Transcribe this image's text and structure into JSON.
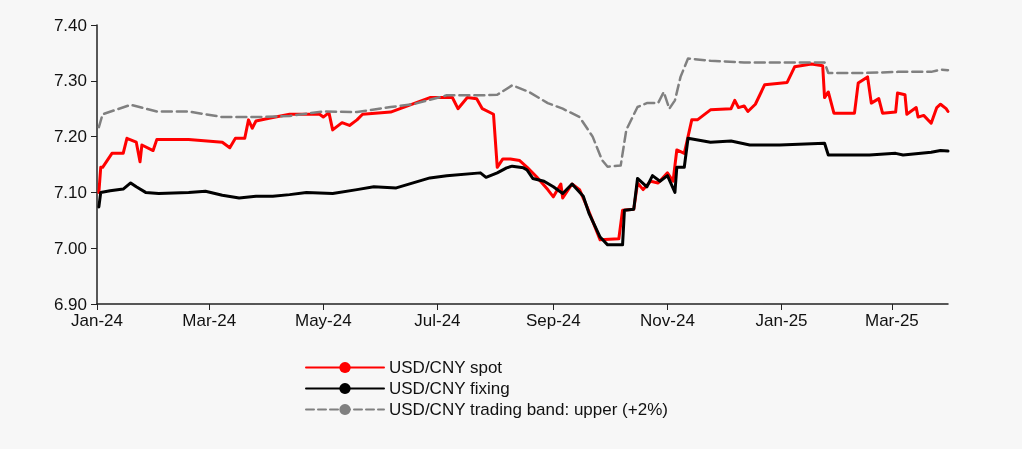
{
  "chart_data": {
    "type": "line",
    "xlim": [
      "2024-01-01",
      "2025-03-31"
    ],
    "xticks": [
      {
        "value": "2024-01-01",
        "label": "Jan-24"
      },
      {
        "value": "2024-03-01",
        "label": "Mar-24"
      },
      {
        "value": "2024-05-01",
        "label": "May-24"
      },
      {
        "value": "2024-07-01",
        "label": "Jul-24"
      },
      {
        "value": "2024-09-01",
        "label": "Sep-24"
      },
      {
        "value": "2024-11-01",
        "label": "Nov-24"
      },
      {
        "value": "2025-01-01",
        "label": "Jan-25"
      },
      {
        "value": "2025-03-01",
        "label": "Mar-25"
      }
    ],
    "ylim": [
      6.9,
      7.4
    ],
    "yticks": [
      {
        "value": 6.9,
        "label": "6.90"
      },
      {
        "value": 7.0,
        "label": "7.00"
      },
      {
        "value": 7.1,
        "label": "7.10"
      },
      {
        "value": 7.2,
        "label": "7.20"
      },
      {
        "value": 7.3,
        "label": "7.30"
      },
      {
        "value": 7.4,
        "label": "7.40"
      }
    ],
    "grid": false,
    "legend": "bottom",
    "marker": "none",
    "series": [
      {
        "name": "USD/CNY spot",
        "color": "#ff0000",
        "line_style": "solid",
        "x": [
          "2024-01-02",
          "2024-01-03",
          "2024-01-04",
          "2024-01-09",
          "2024-01-15",
          "2024-01-17",
          "2024-01-22",
          "2024-01-24",
          "2024-01-25",
          "2024-01-31",
          "2024-02-02",
          "2024-02-19",
          "2024-03-08",
          "2024-03-12",
          "2024-03-15",
          "2024-03-20",
          "2024-03-22",
          "2024-03-24",
          "2024-03-26",
          "2024-04-02",
          "2024-04-13",
          "2024-04-29",
          "2024-05-01",
          "2024-05-04",
          "2024-05-06",
          "2024-05-11",
          "2024-05-15",
          "2024-05-19",
          "2024-05-22",
          "2024-06-06",
          "2024-06-27",
          "2024-07-09",
          "2024-07-12",
          "2024-07-17",
          "2024-07-22",
          "2024-07-25",
          "2024-07-31",
          "2024-08-02",
          "2024-08-05",
          "2024-08-09",
          "2024-08-14",
          "2024-08-18",
          "2024-08-23",
          "2024-08-29",
          "2024-09-01",
          "2024-09-05",
          "2024-09-06",
          "2024-09-11",
          "2024-09-15",
          "2024-09-19",
          "2024-09-26",
          "2024-10-06",
          "2024-10-08",
          "2024-10-14",
          "2024-10-16",
          "2024-10-19",
          "2024-10-23",
          "2024-10-27",
          "2024-11-01",
          "2024-11-04",
          "2024-11-06",
          "2024-11-10",
          "2024-11-14",
          "2024-11-17",
          "2024-11-24",
          "2024-12-05",
          "2024-12-07",
          "2024-12-09",
          "2024-12-12",
          "2024-12-14",
          "2024-12-18",
          "2024-12-23",
          "2025-01-04",
          "2025-01-08",
          "2025-01-17",
          "2025-01-23",
          "2025-01-24",
          "2025-01-26",
          "2025-01-29",
          "2025-02-09",
          "2025-02-11",
          "2025-02-16",
          "2025-02-18",
          "2025-02-22",
          "2025-02-24",
          "2025-03-03",
          "2025-03-04",
          "2025-03-08",
          "2025-03-09",
          "2025-03-14",
          "2025-03-15",
          "2025-03-18",
          "2025-03-22",
          "2025-03-25",
          "2025-03-27",
          "2025-03-30",
          "2025-03-31"
        ],
        "values": [
          7.1,
          7.145,
          7.145,
          7.17,
          7.17,
          7.197,
          7.19,
          7.155,
          7.185,
          7.175,
          7.195,
          7.195,
          7.19,
          7.18,
          7.197,
          7.197,
          7.23,
          7.215,
          7.228,
          7.233,
          7.24,
          7.24,
          7.235,
          7.243,
          7.212,
          7.225,
          7.22,
          7.23,
          7.24,
          7.244,
          7.27,
          7.27,
          7.25,
          7.27,
          7.268,
          7.25,
          7.24,
          7.145,
          7.16,
          7.16,
          7.157,
          7.145,
          7.128,
          7.105,
          7.092,
          7.115,
          7.09,
          7.115,
          7.105,
          7.074,
          7.015,
          7.017,
          7.068,
          7.07,
          7.117,
          7.105,
          7.12,
          7.117,
          7.135,
          7.12,
          7.176,
          7.17,
          7.23,
          7.23,
          7.248,
          7.25,
          7.265,
          7.252,
          7.255,
          7.245,
          7.258,
          7.293,
          7.297,
          7.325,
          7.33,
          7.327,
          7.27,
          7.28,
          7.242,
          7.242,
          7.296,
          7.307,
          7.26,
          7.268,
          7.242,
          7.244,
          7.278,
          7.275,
          7.24,
          7.252,
          7.235,
          7.238,
          7.224,
          7.252,
          7.258,
          7.25,
          7.245
        ]
      },
      {
        "name": "USD/CNY fixing",
        "color": "#000000",
        "line_style": "solid",
        "x": [
          "2024-01-02",
          "2024-01-03",
          "2024-01-08",
          "2024-01-15",
          "2024-01-19",
          "2024-01-22",
          "2024-01-27",
          "2024-02-03",
          "2024-02-19",
          "2024-02-28",
          "2024-03-08",
          "2024-03-17",
          "2024-03-26",
          "2024-04-04",
          "2024-04-13",
          "2024-04-22",
          "2024-05-06",
          "2024-05-19",
          "2024-05-28",
          "2024-06-09",
          "2024-06-18",
          "2024-06-27",
          "2024-07-06",
          "2024-07-24",
          "2024-07-27",
          "2024-08-02",
          "2024-08-07",
          "2024-08-10",
          "2024-08-16",
          "2024-08-18",
          "2024-08-21",
          "2024-08-27",
          "2024-09-01",
          "2024-09-06",
          "2024-09-11",
          "2024-09-17",
          "2024-09-20",
          "2024-09-26",
          "2024-09-30",
          "2024-10-08",
          "2024-10-09",
          "2024-10-14",
          "2024-10-16",
          "2024-10-21",
          "2024-10-24",
          "2024-10-28",
          "2024-11-01",
          "2024-11-05",
          "2024-11-06",
          "2024-11-10",
          "2024-11-12",
          "2024-11-24",
          "2024-12-05",
          "2024-12-15",
          "2024-12-31",
          "2025-01-24",
          "2025-01-26",
          "2025-02-17",
          "2025-03-03",
          "2025-03-07",
          "2025-03-22",
          "2025-03-27",
          "2025-03-31"
        ],
        "values": [
          7.074,
          7.1,
          7.103,
          7.106,
          7.117,
          7.11,
          7.1,
          7.098,
          7.1,
          7.102,
          7.095,
          7.09,
          7.093,
          7.093,
          7.096,
          7.1,
          7.098,
          7.105,
          7.11,
          7.108,
          7.117,
          7.126,
          7.13,
          7.135,
          7.127,
          7.135,
          7.144,
          7.147,
          7.144,
          7.14,
          7.125,
          7.12,
          7.11,
          7.098,
          7.115,
          7.093,
          7.063,
          7.02,
          7.006,
          7.006,
          7.068,
          7.07,
          7.125,
          7.11,
          7.13,
          7.12,
          7.13,
          7.1,
          7.145,
          7.145,
          7.197,
          7.19,
          7.192,
          7.185,
          7.185,
          7.188,
          7.167,
          7.167,
          7.17,
          7.167,
          7.172,
          7.175,
          7.174
        ]
      },
      {
        "name": "USD/CNY trading band: upper (+2%)",
        "color": "#808080",
        "line_style": "dashed",
        "x": [
          "2024-01-02",
          "2024-01-04",
          "2024-01-19",
          "2024-02-02",
          "2024-02-19",
          "2024-03-08",
          "2024-03-26",
          "2024-04-13",
          "2024-05-01",
          "2024-05-19",
          "2024-06-06",
          "2024-06-18",
          "2024-07-06",
          "2024-07-24",
          "2024-08-02",
          "2024-08-10",
          "2024-08-19",
          "2024-08-29",
          "2024-09-06",
          "2024-09-15",
          "2024-09-22",
          "2024-09-27",
          "2024-09-30",
          "2024-10-07",
          "2024-10-10",
          "2024-10-16",
          "2024-10-21",
          "2024-10-27",
          "2024-10-30",
          "2024-11-02",
          "2024-11-05",
          "2024-11-08",
          "2024-11-12",
          "2024-11-24",
          "2024-12-12",
          "2024-12-31",
          "2025-01-24",
          "2025-01-26",
          "2025-02-14",
          "2025-03-04",
          "2025-03-22",
          "2025-03-27",
          "2025-03-31"
        ],
        "values": [
          7.217,
          7.24,
          7.257,
          7.245,
          7.245,
          7.235,
          7.235,
          7.237,
          7.245,
          7.244,
          7.253,
          7.258,
          7.274,
          7.274,
          7.275,
          7.292,
          7.28,
          7.26,
          7.25,
          7.235,
          7.2,
          7.158,
          7.146,
          7.148,
          7.212,
          7.253,
          7.26,
          7.26,
          7.28,
          7.25,
          7.265,
          7.307,
          7.34,
          7.336,
          7.333,
          7.333,
          7.333,
          7.314,
          7.314,
          7.316,
          7.316,
          7.32,
          7.319
        ]
      }
    ]
  }
}
